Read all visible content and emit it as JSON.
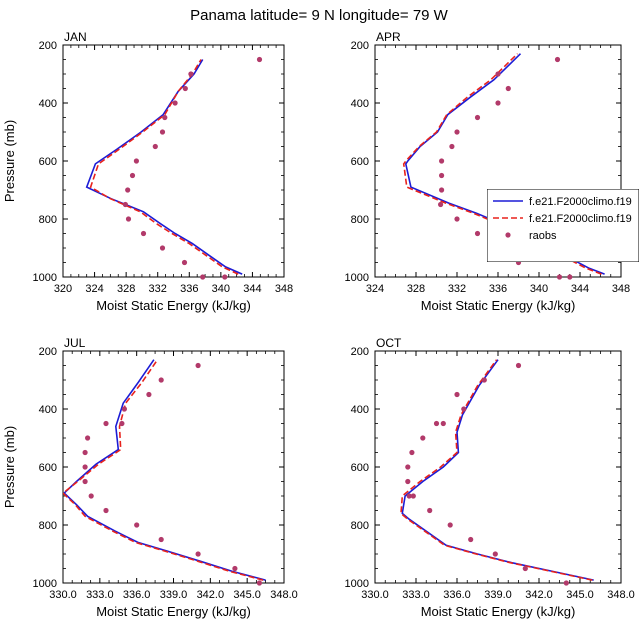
{
  "figure": {
    "title": "Panama  latitude= 9 N longitude= 79 W"
  },
  "legend": {
    "placement": "right, overlapping APR panel",
    "entries": [
      {
        "label": "f.e21.F2000climo.f19",
        "color": "#1c1cd6",
        "style": "solid line"
      },
      {
        "label": "f.e21.F2000climo.f19",
        "color": "#e8221c",
        "style": "dashed line"
      },
      {
        "label": "raobs",
        "color": "#b23a6a",
        "style": "dot"
      }
    ]
  },
  "chart_data": [
    {
      "type": "line",
      "panel": "JAN",
      "title": "JAN",
      "xlabel": "Moist Static Energy (kJ/kg)",
      "ylabel": "Pressure (mb)",
      "xlim": [
        320,
        348
      ],
      "xticks": [
        320,
        324,
        328,
        332,
        336,
        340,
        344,
        348
      ],
      "xtick_labels": [
        "320",
        "324",
        "328",
        "332",
        "336",
        "340",
        "344",
        "348"
      ],
      "ylim": [
        1000,
        200
      ],
      "yticks": [
        200,
        400,
        600,
        800,
        1000
      ],
      "y_reversed": true,
      "series": [
        {
          "label_ref": 0,
          "color": "#1c1cd6",
          "dash": "none",
          "x": [
            342.7,
            340.6,
            338.5,
            336.4,
            334.2,
            332.3,
            330.2,
            326.1,
            323.0,
            324.1,
            326.8,
            329.9,
            332.7,
            334.6,
            336.6,
            337.7
          ],
          "y": [
            990,
            965,
            925,
            885,
            850,
            815,
            775,
            730,
            690,
            610,
            560,
            500,
            440,
            360,
            300,
            250
          ]
        },
        {
          "label_ref": 1,
          "color": "#e8221c",
          "dash": "6,3",
          "x": [
            342.2,
            340.2,
            338.1,
            336.0,
            333.8,
            331.8,
            329.8,
            326.0,
            323.5,
            324.5,
            327.1,
            330.1,
            332.9,
            334.6,
            336.4,
            337.5
          ],
          "y": [
            990,
            965,
            925,
            885,
            850,
            815,
            775,
            730,
            690,
            610,
            560,
            500,
            440,
            360,
            300,
            250
          ]
        }
      ],
      "points": {
        "label_ref": 2,
        "color": "#b23a6a",
        "x": [
          344.9,
          336.2,
          335.5,
          334.2,
          332.9,
          332.6,
          331.7,
          329.3,
          328.8,
          328.2,
          327.9,
          328.3,
          330.2,
          332.6,
          335.4,
          337.7,
          340.5
        ],
        "y": [
          250,
          300,
          350,
          400,
          450,
          500,
          550,
          600,
          650,
          700,
          750,
          800,
          850,
          900,
          950,
          1000,
          1000
        ]
      }
    },
    {
      "type": "line",
      "panel": "APR",
      "title": "APR",
      "xlabel": "Moist Static Energy (kJ/kg)",
      "ylabel": "",
      "xlim": [
        324,
        348
      ],
      "xticks": [
        324,
        328,
        332,
        336,
        340,
        344,
        348
      ],
      "xtick_labels": [
        "324",
        "328",
        "332",
        "336",
        "340",
        "344",
        "348"
      ],
      "ylim": [
        1000,
        200
      ],
      "yticks": [
        200,
        400,
        600,
        800,
        1000
      ],
      "y_reversed": true,
      "series": [
        {
          "label_ref": 0,
          "color": "#1c1cd6",
          "dash": "none",
          "x": [
            346.4,
            344.9,
            343.0,
            341.1,
            338.9,
            336.6,
            333.9,
            331.2,
            327.5,
            327.0,
            327.2,
            328.4,
            330.1,
            331.1,
            333.3,
            335.6,
            338.2
          ],
          "y": [
            990,
            970,
            935,
            900,
            860,
            820,
            780,
            745,
            690,
            610,
            600,
            550,
            500,
            440,
            380,
            320,
            230
          ]
        },
        {
          "label_ref": 1,
          "color": "#e8221c",
          "dash": "6,3",
          "x": [
            346.1,
            344.6,
            342.7,
            340.8,
            338.6,
            336.3,
            333.6,
            330.9,
            327.1,
            326.8,
            327.0,
            328.3,
            330.0,
            331.0,
            333.0,
            335.3,
            337.9
          ],
          "y": [
            990,
            970,
            935,
            900,
            860,
            820,
            780,
            745,
            690,
            610,
            600,
            550,
            500,
            440,
            380,
            320,
            230
          ]
        }
      ],
      "points": {
        "label_ref": 2,
        "color": "#b23a6a",
        "x": [
          341.8,
          336.0,
          337.0,
          336.0,
          334.0,
          332.0,
          331.5,
          330.5,
          330.5,
          330.5,
          330.4,
          332.0,
          334.0,
          336.0,
          338.0,
          342.0,
          343.0
        ],
        "y": [
          250,
          300,
          350,
          400,
          450,
          500,
          550,
          600,
          650,
          700,
          750,
          800,
          850,
          900,
          950,
          1000,
          1000
        ]
      }
    },
    {
      "type": "line",
      "panel": "JUL",
      "title": "JUL",
      "xlabel": "Moist Static Energy (kJ/kg)",
      "ylabel": "Pressure (mb)",
      "xlim": [
        330,
        348
      ],
      "xticks": [
        330,
        333,
        336,
        339,
        342,
        345,
        348
      ],
      "xtick_labels": [
        "330.0",
        "333.0",
        "336.0",
        "339.0",
        "342.0",
        "345.0",
        "348.0"
      ],
      "ylim": [
        1000,
        200
      ],
      "yticks": [
        200,
        400,
        600,
        800,
        1000
      ],
      "y_reversed": true,
      "series": [
        {
          "label_ref": 0,
          "color": "#1c1cd6",
          "dash": "none",
          "x": [
            346.5,
            343.8,
            341.2,
            338.5,
            336.1,
            334.2,
            332.0,
            331.1,
            330.1,
            331.1,
            332.7,
            334.5,
            334.3,
            334.9,
            336.1,
            337.4
          ],
          "y": [
            990,
            960,
            925,
            890,
            860,
            820,
            770,
            730,
            690,
            650,
            590,
            540,
            460,
            380,
            310,
            230
          ]
        },
        {
          "label_ref": 1,
          "color": "#e8221c",
          "dash": "6,3",
          "x": [
            346.3,
            343.6,
            341.0,
            338.3,
            335.9,
            334.0,
            331.8,
            331.0,
            330.0,
            331.2,
            332.9,
            334.7,
            334.6,
            335.1,
            336.4,
            337.7
          ],
          "y": [
            990,
            960,
            925,
            890,
            860,
            820,
            770,
            730,
            690,
            650,
            590,
            540,
            460,
            380,
            310,
            230
          ]
        }
      ],
      "points": {
        "label_ref": 2,
        "color": "#b23a6a",
        "x": [
          341.0,
          338.0,
          337.0,
          335.0,
          334.8,
          333.5,
          332.0,
          331.8,
          331.8,
          331.8,
          332.3,
          333.5,
          336.0,
          338.0,
          341.0,
          344.0,
          346.0
        ],
        "y": [
          250,
          300,
          350,
          400,
          450,
          450,
          500,
          550,
          600,
          650,
          700,
          750,
          800,
          850,
          900,
          950,
          1000
        ]
      }
    },
    {
      "type": "line",
      "panel": "OCT",
      "title": "OCT",
      "xlabel": "Moist Static Energy (kJ/kg)",
      "ylabel": "",
      "xlim": [
        330,
        348
      ],
      "xticks": [
        330,
        333,
        336,
        339,
        342,
        345,
        348
      ],
      "xtick_labels": [
        "330.0",
        "333.0",
        "336.0",
        "339.0",
        "342.0",
        "345.0",
        "348.0"
      ],
      "ylim": [
        1000,
        200
      ],
      "yticks": [
        200,
        400,
        600,
        800,
        1000
      ],
      "y_reversed": true,
      "series": [
        {
          "label_ref": 0,
          "color": "#1c1cd6",
          "dash": "none",
          "x": [
            346.0,
            343.0,
            340.0,
            337.5,
            335.2,
            334.0,
            332.5,
            332.0,
            332.2,
            333.5,
            335.0,
            336.1,
            336.0,
            336.4,
            337.6,
            339.0
          ],
          "y": [
            990,
            960,
            930,
            900,
            870,
            830,
            780,
            760,
            700,
            650,
            600,
            550,
            480,
            420,
            320,
            230
          ]
        },
        {
          "label_ref": 1,
          "color": "#e8221c",
          "dash": "6,3",
          "x": [
            345.9,
            342.9,
            339.9,
            337.4,
            335.1,
            333.9,
            332.4,
            331.9,
            332.0,
            333.3,
            334.8,
            336.0,
            335.9,
            336.3,
            337.5,
            338.9
          ],
          "y": [
            990,
            960,
            930,
            900,
            870,
            830,
            780,
            760,
            700,
            650,
            600,
            550,
            480,
            420,
            320,
            230
          ]
        }
      ],
      "points": {
        "label_ref": 2,
        "color": "#b23a6a",
        "x": [
          340.5,
          338.0,
          336.0,
          336.5,
          335.0,
          334.5,
          333.5,
          332.7,
          332.4,
          332.4,
          332.5,
          332.8,
          334.0,
          335.5,
          337.0,
          338.8,
          341.0,
          344.0
        ],
        "y": [
          250,
          300,
          350,
          400,
          450,
          450,
          500,
          550,
          600,
          650,
          700,
          700,
          750,
          800,
          850,
          900,
          950,
          1000
        ]
      }
    }
  ]
}
